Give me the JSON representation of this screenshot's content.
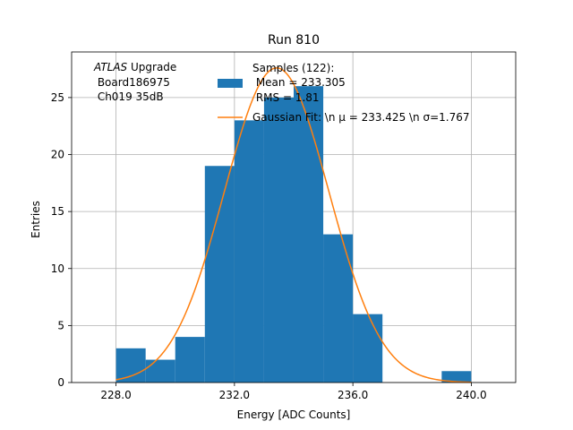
{
  "chart_data": {
    "type": "bar",
    "title": "Run 810",
    "xlabel": "Energy [ADC Counts]",
    "ylabel": "Entries",
    "xlim": [
      226.5,
      241.5
    ],
    "ylim": [
      0,
      29
    ],
    "grid": true,
    "x_ticks": [
      228,
      232,
      236,
      240
    ],
    "x_tick_labels": [
      "228.0",
      "232.0",
      "236.0",
      "240.0"
    ],
    "y_ticks": [
      0,
      5,
      10,
      15,
      20,
      25
    ],
    "y_tick_labels": [
      "0",
      "5",
      "10",
      "15",
      "20",
      "25"
    ],
    "histogram": {
      "bin_edges": [
        228,
        229,
        230,
        231,
        232,
        233,
        234,
        235,
        236,
        237,
        238,
        239,
        240
      ],
      "counts": [
        3,
        2,
        4,
        19,
        23,
        25,
        26,
        13,
        6,
        0,
        0,
        1
      ],
      "color": "#1f77b4"
    },
    "fit": {
      "type": "gaussian",
      "mu": 233.425,
      "sigma": 1.767,
      "amplitude": 27.6,
      "x_range": [
        228,
        240
      ],
      "color": "#ff7f0e"
    },
    "legend": {
      "placement": "top-right",
      "entries": [
        {
          "kind": "patch",
          "lines": [
            "Samples (122):",
            " Mean = 233.305",
            " RMS = 1.81"
          ]
        },
        {
          "kind": "line",
          "lines": [
            "Gaussian Fit: \\n μ = 233.425 \\n σ=1.767"
          ]
        }
      ]
    },
    "annotation": {
      "italic": "ATLAS",
      "rest": " Upgrade",
      "lines": [
        " Board186975",
        " Ch019 35dB"
      ]
    }
  }
}
